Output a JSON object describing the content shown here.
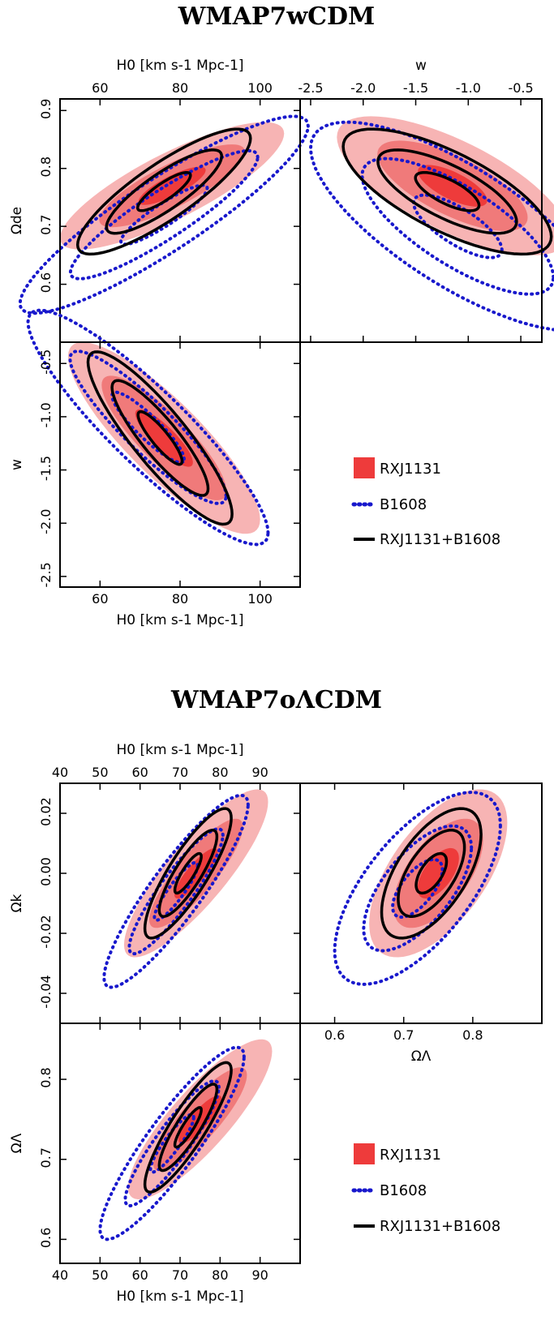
{
  "colors": {
    "rx_light": "#f7b4b4",
    "rx_mid": "#f07a7a",
    "rx_dark": "#ee3b3b",
    "b1608": "#1818cc",
    "combined": "#000000"
  },
  "chart_data": [
    {
      "type": "contour",
      "title": "WMAP7wCDM",
      "legend": [
        "RXJ1131",
        "B1608",
        "RXJ1131+B1608"
      ],
      "panels": {
        "h0_ode": {
          "xlabel": "H0 [km s-1 Mpc-1]",
          "ylabel": "Ωde",
          "xlim": [
            50,
            110
          ],
          "ylim": [
            0.5,
            0.92
          ],
          "xticks": [
            "60",
            "80",
            "100"
          ],
          "yticks": [
            "0.6",
            "0.7",
            "0.8",
            "0.9"
          ],
          "rx": {
            "center": [
              78,
              0.77
            ],
            "sigma": [
              14,
              0.055
            ],
            "rho": 0.82
          },
          "b1608": {
            "center": [
              76,
              0.72
            ],
            "sigma": [
              18,
              0.085
            ],
            "rho": 0.9
          },
          "comb": {
            "center": [
              76,
              0.76
            ],
            "sigma": [
              12,
              0.06
            ],
            "rho": 0.85
          }
        },
        "w_ode": {
          "xlabel": "w",
          "ylabel": "",
          "xlim": [
            -2.6,
            -0.3
          ],
          "ylim": [
            0.5,
            0.92
          ],
          "xticks": [
            "-2.5",
            "-2.0",
            "-1.5",
            "-1.0",
            "-0.5"
          ],
          "yticks": [],
          "rx": {
            "center": [
              -1.15,
              0.77
            ],
            "sigma": [
              0.55,
              0.06
            ],
            "rho": -0.7
          },
          "b1608": {
            "center": [
              -1.1,
              0.7
            ],
            "sigma": [
              0.7,
              0.09
            ],
            "rho": -0.75
          },
          "comb": {
            "center": [
              -1.2,
              0.76
            ],
            "sigma": [
              0.55,
              0.06
            ],
            "rho": -0.72
          }
        },
        "h0_w": {
          "xlabel": "H0 [km s-1 Mpc-1]",
          "ylabel": "w",
          "xlim": [
            50,
            110
          ],
          "ylim": [
            -2.6,
            -0.3
          ],
          "xticks": [
            "60",
            "80",
            "100"
          ],
          "yticks": [
            "-2.5",
            "-2.0",
            "-1.5",
            "-1.0",
            "-0.5"
          ],
          "rx": {
            "center": [
              76,
              -1.2
            ],
            "sigma": [
              12,
              0.45
            ],
            "rho": -0.85
          },
          "b1608": {
            "center": [
              72,
              -1.1
            ],
            "sigma": [
              15,
              0.55
            ],
            "rho": -0.9
          },
          "comb": {
            "center": [
              75,
              -1.2
            ],
            "sigma": [
              10,
              0.45
            ],
            "rho": -0.88
          }
        }
      }
    },
    {
      "type": "contour",
      "title": "WMAP7oΛCDM",
      "legend": [
        "RXJ1131",
        "B1608",
        "RXJ1131+B1608"
      ],
      "panels": {
        "h0_ok": {
          "xlabel": "H0 [km s-1 Mpc-1]",
          "ylabel": "Ωk",
          "xlim": [
            40,
            100
          ],
          "ylim": [
            -0.05,
            0.03
          ],
          "xticks": [
            "40",
            "50",
            "60",
            "70",
            "80",
            "90"
          ],
          "yticks": [
            "-0.04",
            "-0.02",
            "0.00",
            "0.02"
          ],
          "rx": {
            "center": [
              74,
              0.0
            ],
            "sigma": [
              9,
              0.014
            ],
            "rho": 0.85
          },
          "b1608": {
            "center": [
              69,
              -0.006
            ],
            "sigma": [
              9,
              0.016
            ],
            "rho": 0.9
          },
          "comb": {
            "center": [
              72,
              0.0
            ],
            "sigma": [
              6,
              0.012
            ],
            "rho": 0.85
          }
        },
        "ol_ok": {
          "xlabel": "ΩΛ",
          "ylabel": "",
          "xlim": [
            0.55,
            0.9
          ],
          "ylim": [
            -0.05,
            0.03
          ],
          "xticks": [
            "0.6",
            "0.7",
            "0.8"
          ],
          "yticks": [],
          "rx": {
            "center": [
              0.75,
              0.0
            ],
            "sigma": [
              0.05,
              0.014
            ],
            "rho": 0.6
          },
          "b1608": {
            "center": [
              0.72,
              -0.005
            ],
            "sigma": [
              0.06,
              0.016
            ],
            "rho": 0.65
          },
          "comb": {
            "center": [
              0.74,
              0.0
            ],
            "sigma": [
              0.04,
              0.012
            ],
            "rho": 0.6
          }
        },
        "h0_ol": {
          "xlabel": "H0 [km s-1 Mpc-1]",
          "ylabel": "ΩΛ",
          "xlim": [
            40,
            100
          ],
          "ylim": [
            0.57,
            0.87
          ],
          "xticks": [
            "40",
            "50",
            "60",
            "70",
            "80",
            "90"
          ],
          "yticks": [
            "0.6",
            "0.7",
            "0.8"
          ],
          "rx": {
            "center": [
              75,
              0.75
            ],
            "sigma": [
              9,
              0.05
            ],
            "rho": 0.85
          },
          "b1608": {
            "center": [
              68,
              0.72
            ],
            "sigma": [
              9,
              0.06
            ],
            "rho": 0.9
          },
          "comb": {
            "center": [
              72,
              0.74
            ],
            "sigma": [
              6,
              0.045
            ],
            "rho": 0.88
          }
        }
      }
    }
  ]
}
